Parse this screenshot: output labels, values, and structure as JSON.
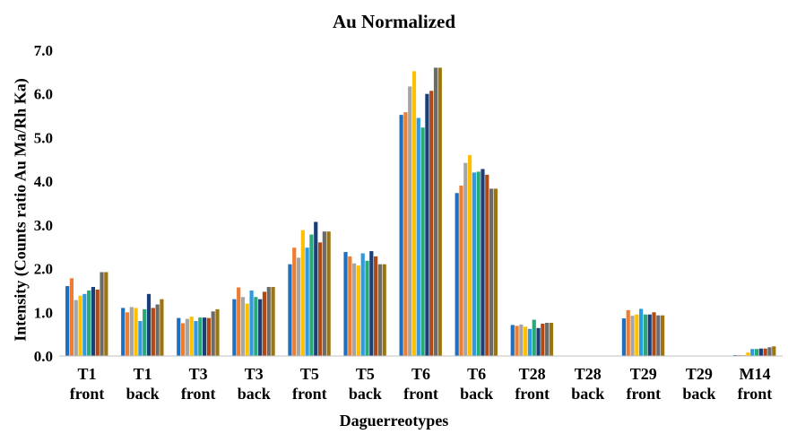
{
  "chart_data": {
    "type": "bar",
    "title": "Au Normalized",
    "xlabel": "Daguerreotypes",
    "ylabel": "Intensity (Counts ratio Au Ma/Rh Ka)",
    "ylim": [
      0,
      7
    ],
    "yticks": [
      "0.0",
      "1.0",
      "2.0",
      "3.0",
      "4.0",
      "5.0",
      "6.0",
      "7.0"
    ],
    "grid": false,
    "legend": "none",
    "categories": [
      [
        "T1",
        "front"
      ],
      [
        "T1",
        "back"
      ],
      [
        "T3",
        "front"
      ],
      [
        "T3",
        "back"
      ],
      [
        "T5",
        "front"
      ],
      [
        "T5",
        "back"
      ],
      [
        "T6",
        "front"
      ],
      [
        "T6",
        "back"
      ],
      [
        "T28",
        "front"
      ],
      [
        "T28",
        "back"
      ],
      [
        "T29",
        "front"
      ],
      [
        "T29",
        "back"
      ],
      [
        "M14",
        "front"
      ]
    ],
    "series_colors": [
      "#1f6fc1",
      "#ed7d31",
      "#a5a5a5",
      "#ffc000",
      "#2e9be0",
      "#2aa876",
      "#1a3f78",
      "#b04a14",
      "#6b6b6b",
      "#9c7410"
    ],
    "groups": [
      [
        1.6,
        1.78,
        1.28,
        1.38,
        1.42,
        1.5,
        1.58,
        1.52,
        1.92,
        1.92
      ],
      [
        1.1,
        1.0,
        1.12,
        1.1,
        0.8,
        1.07,
        1.42,
        1.1,
        1.18,
        1.3
      ],
      [
        0.87,
        0.75,
        0.85,
        0.9,
        0.8,
        0.88,
        0.88,
        0.87,
        1.02,
        1.07
      ],
      [
        1.3,
        1.57,
        1.35,
        1.2,
        1.5,
        1.35,
        1.3,
        1.47,
        1.58,
        1.58
      ],
      [
        2.1,
        2.48,
        2.25,
        2.88,
        2.48,
        2.78,
        3.07,
        2.6,
        2.85,
        2.85
      ],
      [
        2.38,
        2.28,
        2.12,
        2.07,
        2.35,
        2.18,
        2.4,
        2.28,
        2.1,
        2.1
      ],
      [
        5.52,
        5.58,
        6.17,
        6.52,
        5.45,
        5.23,
        6.0,
        6.07,
        6.6,
        6.6
      ],
      [
        3.73,
        3.9,
        4.42,
        4.6,
        4.2,
        4.22,
        4.28,
        4.15,
        3.83,
        3.83
      ],
      [
        0.71,
        0.69,
        0.72,
        0.67,
        0.62,
        0.83,
        0.64,
        0.74,
        0.76,
        0.76
      ],
      [
        0,
        0,
        0,
        0,
        0,
        0,
        0,
        0,
        0,
        0
      ],
      [
        0.86,
        1.05,
        0.92,
        0.95,
        1.08,
        0.95,
        0.95,
        1.0,
        0.93,
        0.93
      ],
      [
        0,
        0,
        0,
        0,
        0,
        0,
        0,
        0,
        0,
        0
      ],
      [
        0.02,
        0.02,
        0.02,
        0.08,
        0.16,
        0.16,
        0.17,
        0.17,
        0.2,
        0.22
      ]
    ]
  }
}
